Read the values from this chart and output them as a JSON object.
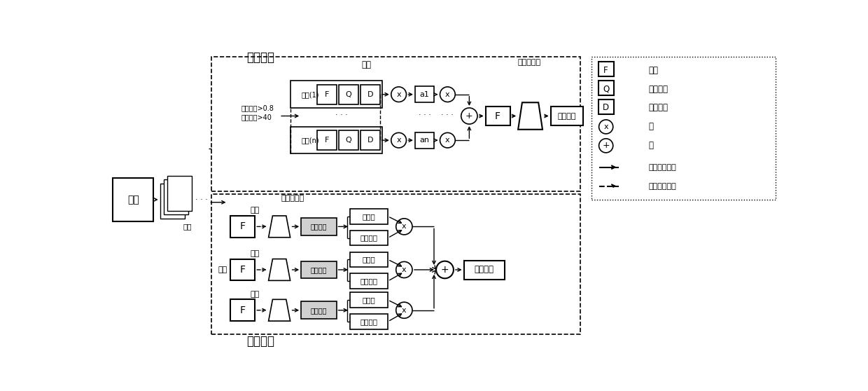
{
  "bg_color": "#ffffff",
  "part1_label": "第一部分",
  "part2_label": "第二部分",
  "video_label": "视频",
  "frame_label": "帧数",
  "face_label": "人脸",
  "head_label": "头部",
  "sound_label": "声音",
  "other_label": "其他",
  "mlp_label": "多层感知机",
  "predict_result": "预测结果",
  "predict_val": "预测值",
  "rank_score": "排名得分",
  "predict_result_box": "预测结果",
  "F_label": "F",
  "Q_label": "Q",
  "D_label": "D",
  "legend_F": "特征",
  "legend_Q": "质量分数",
  "legend_D": "检测分数",
  "legend_X": "乘",
  "legend_plus": "加",
  "legend_solid": "分数流动方向",
  "legend_dash": "特征流动方向",
  "frame1_label": "帧数(1)",
  "framen_label": "帧数(n)",
  "a1_label": "a1",
  "an_label": "an",
  "detect_line1": "检测评分>0.8",
  "detect_line2": "质量评分>40",
  "face_top_label": "人脸",
  "predict_result_gray": "预测结果"
}
